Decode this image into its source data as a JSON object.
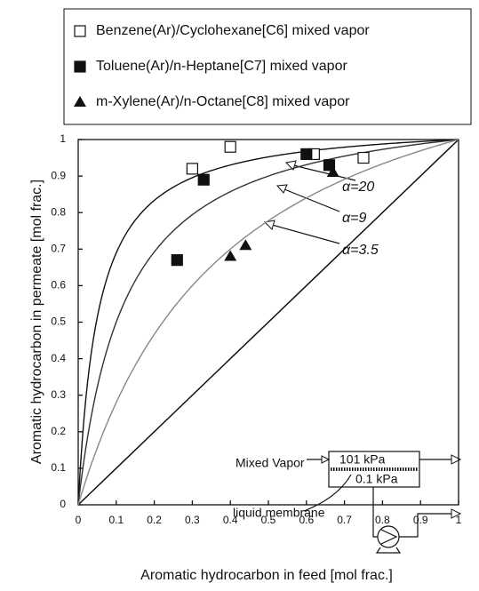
{
  "chart_data": {
    "type": "scatter",
    "xlabel": "Aromatic hydrocarbon in feed [mol frac.]",
    "ylabel": "Aromatic hydrocarbon in permeate [mol frac.]",
    "xlim": [
      0,
      1
    ],
    "ylim": [
      0,
      1
    ],
    "xticks": [
      0,
      0.1,
      0.2,
      0.3,
      0.4,
      0.5,
      0.6,
      0.7,
      0.8,
      0.9,
      1
    ],
    "yticks": [
      0,
      0.1,
      0.2,
      0.3,
      0.4,
      0.5,
      0.6,
      0.7,
      0.8,
      0.9,
      1
    ],
    "series": [
      {
        "name": "Benzene(Ar)/Cyclohexane[C6] mixed vapor",
        "marker": "square-open",
        "color": "#111111",
        "x": [
          0.3,
          0.4,
          0.62,
          0.75
        ],
        "values": [
          0.92,
          0.98,
          0.96,
          0.95
        ]
      },
      {
        "name": "Toluene(Ar)/n-Heptane[C7] mixed vapor",
        "marker": "square",
        "color": "#111111",
        "x": [
          0.26,
          0.33,
          0.6,
          0.66
        ],
        "values": [
          0.67,
          0.89,
          0.96,
          0.93
        ]
      },
      {
        "name": "m-Xylene(Ar)/n-Octane[C8] mixed vapor",
        "marker": "triangle",
        "color": "#111111",
        "x": [
          0.4,
          0.44,
          0.67
        ],
        "values": [
          0.68,
          0.71,
          0.91
        ]
      }
    ],
    "curves": [
      {
        "label": "α=20",
        "alpha": 20,
        "color": "#111111"
      },
      {
        "label": "α=9",
        "alpha": 9,
        "color": "#333333"
      },
      {
        "label": "α=3.5",
        "alpha": 3.5,
        "color": "#888888"
      }
    ],
    "annotations": [
      "Mixed Vapor",
      "101 kPa",
      "0.1 kPa",
      "liquid membrane"
    ]
  }
}
